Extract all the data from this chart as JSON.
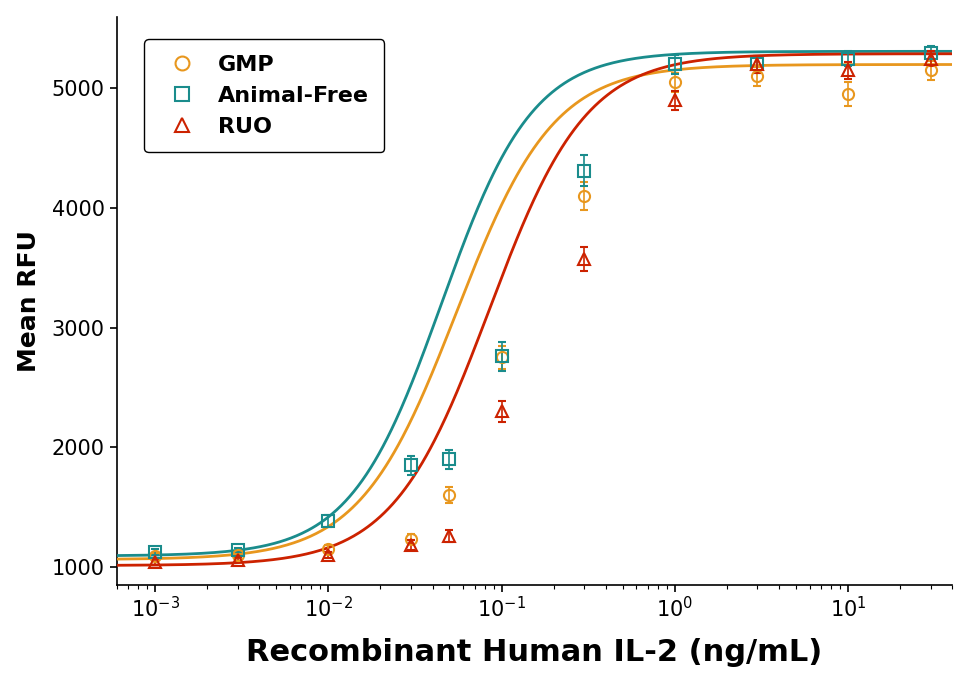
{
  "title": "",
  "xlabel": "Recombinant Human IL-2 (ng/mL)",
  "ylabel": "Mean RFU",
  "xlabel_fontsize": 22,
  "ylabel_fontsize": 18,
  "tick_fontsize": 15,
  "legend_fontsize": 16,
  "xlim": [
    0.0006,
    40
  ],
  "ylim": [
    850,
    5600
  ],
  "yticks": [
    1000,
    2000,
    3000,
    4000,
    5000
  ],
  "series": [
    {
      "label": "GMP",
      "color": "#E8971E",
      "marker": "o",
      "x": [
        0.001,
        0.003,
        0.01,
        0.03,
        0.05,
        0.1,
        0.3,
        1.0,
        3.0,
        10.0,
        30.0
      ],
      "y": [
        1090,
        1100,
        1150,
        1230,
        1600,
        2750,
        4100,
        5050,
        5100,
        4950,
        5150
      ],
      "yerr": [
        25,
        25,
        30,
        40,
        70,
        100,
        120,
        80,
        80,
        100,
        80
      ],
      "ec50": 0.055,
      "bottom": 1060,
      "top": 5200,
      "hillslope": 1.55
    },
    {
      "label": "Animal-Free",
      "color": "#1A8C8C",
      "marker": "s",
      "x": [
        0.001,
        0.003,
        0.01,
        0.03,
        0.05,
        0.1,
        0.3,
        1.0,
        3.0,
        10.0,
        30.0
      ],
      "y": [
        1120,
        1140,
        1380,
        1850,
        1900,
        2760,
        4310,
        5200,
        5200,
        5250,
        5300
      ],
      "yerr": [
        25,
        20,
        50,
        80,
        80,
        120,
        130,
        80,
        70,
        60,
        55
      ],
      "ec50": 0.045,
      "bottom": 1090,
      "top": 5310,
      "hillslope": 1.65
    },
    {
      "label": "RUO",
      "color": "#CC2200",
      "marker": "^",
      "x": [
        0.001,
        0.003,
        0.01,
        0.03,
        0.05,
        0.1,
        0.3,
        1.0,
        3.0,
        10.0,
        30.0
      ],
      "y": [
        1040,
        1060,
        1100,
        1180,
        1260,
        2300,
        3570,
        4900,
        5200,
        5150,
        5250
      ],
      "yerr": [
        25,
        20,
        25,
        40,
        50,
        90,
        100,
        80,
        70,
        70,
        60
      ],
      "ec50": 0.085,
      "bottom": 1010,
      "top": 5290,
      "hillslope": 1.55
    }
  ],
  "background_color": "#ffffff"
}
